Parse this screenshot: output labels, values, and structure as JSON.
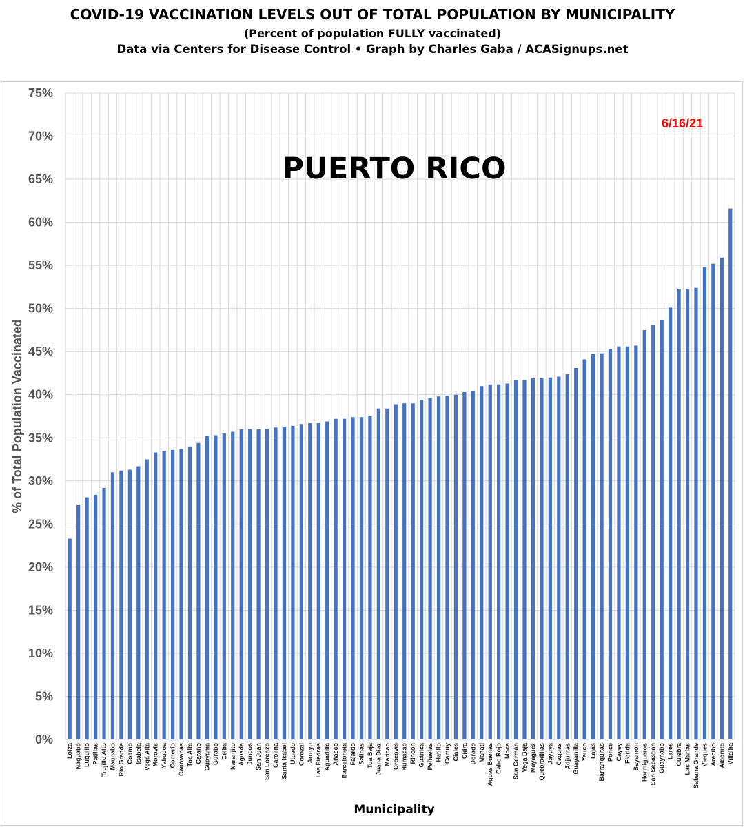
{
  "header": {
    "title": "COVID-19 VACCINATION LEVELS OUT OF TOTAL POPULATION BY MUNICIPALITY",
    "subtitle": "(Percent of population FULLY vaccinated)",
    "source": "Data via Centers for Disease Control • Graph by Charles Gaba / ACASignups.net"
  },
  "chart_data": {
    "type": "bar",
    "title": "PUERTO RICO",
    "annotation": "6/16/21",
    "xlabel": "Municipality",
    "ylabel": "% of Total Population Vaccinated",
    "ylim": [
      0,
      75
    ],
    "y_ticks": [
      "0%",
      "5%",
      "10%",
      "15%",
      "20%",
      "25%",
      "30%",
      "35%",
      "40%",
      "45%",
      "50%",
      "55%",
      "60%",
      "65%",
      "70%",
      "75%"
    ],
    "grid": true,
    "bar_color": "#4472c4",
    "annotation_color": "#ff0000",
    "categories": [
      "Loíza",
      "Naguabo",
      "Luquillo",
      "Patillas",
      "Trujillo Alto",
      "Maunabo",
      "Río Grande",
      "Coamo",
      "Isabela",
      "Vega Alta",
      "Morovis",
      "Yabucoa",
      "Comerío",
      "Canóvanas",
      "Toa Alta",
      "Cataño",
      "Guayama",
      "Gurabo",
      "Ceiba",
      "Naranjito",
      "Aguada",
      "Juncos",
      "San Juan",
      "San Lorenzo",
      "Carolina",
      "Santa Isabel",
      "Utuado",
      "Corozal",
      "Arroyo",
      "Las Piedras",
      "Aguadilla",
      "Añasco",
      "Barceloneta",
      "Fajardo",
      "Salinas",
      "Toa Baja",
      "Juana Díaz",
      "Maricao",
      "Orocovis",
      "Humacao",
      "Rincón",
      "Guánica",
      "Peñuelas",
      "Hatillo",
      "Camuy",
      "Ciales",
      "Cidra",
      "Dorado",
      "Manatí",
      "Aguas Buenas",
      "Cabo Rojo",
      "Moca",
      "San Germán",
      "Vega Baja",
      "Mayagüez",
      "Quebradillas",
      "Jayuya",
      "Caguas",
      "Adjuntas",
      "Guayanilla",
      "Yauco",
      "Lajas",
      "Barranquitas",
      "Ponce",
      "Cayey",
      "Florida",
      "Bayamón",
      "Hormigueros",
      "San Sebastián",
      "Guaynabo",
      "Lares",
      "Culebra",
      "Las Marías",
      "Sabana Grande",
      "Vieques",
      "Arecibo",
      "Aibonito",
      "Villalba"
    ],
    "values": [
      23.3,
      27.2,
      28.1,
      28.4,
      29.2,
      31.0,
      31.2,
      31.3,
      31.7,
      32.5,
      33.3,
      33.5,
      33.6,
      33.7,
      34.0,
      34.4,
      35.2,
      35.3,
      35.5,
      35.7,
      36.0,
      36.0,
      36.0,
      36.0,
      36.2,
      36.3,
      36.4,
      36.6,
      36.7,
      36.7,
      36.9,
      37.2,
      37.2,
      37.4,
      37.4,
      37.5,
      38.4,
      38.4,
      38.9,
      39.0,
      39.0,
      39.4,
      39.6,
      39.8,
      39.9,
      40.0,
      40.3,
      40.4,
      41.0,
      41.2,
      41.2,
      41.3,
      41.7,
      41.7,
      41.9,
      41.9,
      42.0,
      42.1,
      42.4,
      43.1,
      44.1,
      44.7,
      44.8,
      45.3,
      45.6,
      45.6,
      45.7,
      47.5,
      48.1,
      48.7,
      50.1,
      52.3,
      52.3,
      52.4,
      54.8,
      55.2,
      55.9,
      61.6
    ]
  }
}
